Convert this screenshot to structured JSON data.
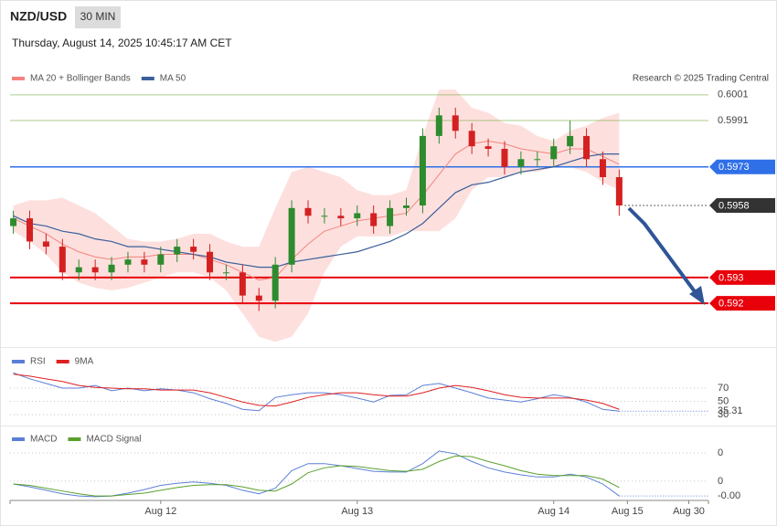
{
  "header": {
    "symbol": "NZD/USD",
    "interval": "30 MIN",
    "date": "Thursday, August 14, 2025 10:45:17 AM CET"
  },
  "chart_data": [
    {
      "type": "candlestick",
      "annotation": "Research © 2025 Trading Central",
      "x": [
        -18,
        -16,
        -14,
        -12,
        -10,
        -8,
        -6,
        -4,
        -2,
        0,
        2,
        4,
        6,
        8,
        10,
        12,
        14,
        16,
        18,
        20,
        22,
        24,
        26,
        28,
        30,
        32,
        34,
        36,
        38,
        40,
        42,
        44,
        46,
        48,
        50,
        52,
        54,
        56
      ],
      "open": [
        0.595,
        0.5953,
        0.5944,
        0.5942,
        0.5932,
        0.5934,
        0.5932,
        0.5935,
        0.5937,
        0.5935,
        0.5939,
        0.5942,
        0.594,
        0.5932,
        0.5932,
        0.5923,
        0.5921,
        0.5935,
        0.5957,
        0.5954,
        0.5954,
        0.5953,
        0.5955,
        0.595,
        0.5957,
        0.5958,
        0.5985,
        0.5993,
        0.5987,
        0.5981,
        0.598,
        0.5973,
        0.5976,
        0.5976,
        0.5981,
        0.5985,
        0.5976,
        0.5969
      ],
      "high": [
        0.5956,
        0.5956,
        0.5947,
        0.5945,
        0.5937,
        0.5937,
        0.5938,
        0.594,
        0.594,
        0.5942,
        0.5945,
        0.5945,
        0.5943,
        0.5935,
        0.5935,
        0.5926,
        0.5938,
        0.596,
        0.596,
        0.5957,
        0.5957,
        0.5958,
        0.5958,
        0.596,
        0.5961,
        0.5988,
        0.5996,
        0.5996,
        0.599,
        0.5984,
        0.5983,
        0.5979,
        0.5979,
        0.5984,
        0.5991,
        0.5988,
        0.5979,
        0.5972
      ],
      "low": [
        0.5947,
        0.5941,
        0.5939,
        0.5929,
        0.5929,
        0.5929,
        0.5929,
        0.5932,
        0.5932,
        0.5932,
        0.5936,
        0.5937,
        0.5929,
        0.5929,
        0.592,
        0.5917,
        0.5918,
        0.5932,
        0.5951,
        0.5951,
        0.595,
        0.595,
        0.5947,
        0.5947,
        0.5954,
        0.5955,
        0.5982,
        0.5984,
        0.5978,
        0.5977,
        0.597,
        0.597,
        0.5973,
        0.5973,
        0.5978,
        0.5973,
        0.5966,
        0.5954
      ],
      "close": [
        0.5953,
        0.5944,
        0.5942,
        0.5932,
        0.5934,
        0.5932,
        0.5935,
        0.5937,
        0.5935,
        0.5939,
        0.5942,
        0.594,
        0.5932,
        0.5932,
        0.5923,
        0.5921,
        0.5935,
        0.5957,
        0.5954,
        0.5954,
        0.5953,
        0.5955,
        0.595,
        0.5957,
        0.5958,
        0.5985,
        0.5993,
        0.5987,
        0.5981,
        0.598,
        0.5973,
        0.5976,
        0.5976,
        0.5981,
        0.5985,
        0.5976,
        0.5969,
        0.5958
      ],
      "up_color": "#2e8b2e",
      "down_color": "#d42020",
      "series": [
        {
          "name": "MA 20 + Bollinger Bands",
          "color": "#f4837d",
          "band_color": "#fde0de",
          "values": [
            0.5953,
            0.595,
            0.5947,
            0.5943,
            0.594,
            0.5938,
            0.5937,
            0.5938,
            0.5938,
            0.5939,
            0.5939,
            0.5939,
            0.5937,
            0.5935,
            0.5932,
            0.5929,
            0.593,
            0.5937,
            0.5943,
            0.5948,
            0.595,
            0.5952,
            0.5953,
            0.5954,
            0.5955,
            0.5962,
            0.597,
            0.5978,
            0.5982,
            0.5983,
            0.5982,
            0.598,
            0.5979,
            0.5978,
            0.598,
            0.598,
            0.5977,
            0.5974
          ],
          "upper": [
            0.5958,
            0.596,
            0.596,
            0.5961,
            0.5958,
            0.5955,
            0.595,
            0.5945,
            0.5944,
            0.5944,
            0.5945,
            0.5947,
            0.5947,
            0.5944,
            0.5942,
            0.5942,
            0.5957,
            0.5971,
            0.5973,
            0.5971,
            0.5969,
            0.5964,
            0.5962,
            0.5962,
            0.5964,
            0.5985,
            0.6003,
            0.6003,
            0.5996,
            0.5994,
            0.599,
            0.5989,
            0.5985,
            0.5983,
            0.5987,
            0.5989,
            0.5992,
            0.5994
          ],
          "lower": [
            0.5948,
            0.5944,
            0.5939,
            0.5932,
            0.5928,
            0.5926,
            0.5925,
            0.5926,
            0.5928,
            0.593,
            0.5932,
            0.5932,
            0.593,
            0.5925,
            0.5916,
            0.5907,
            0.5905,
            0.5907,
            0.5916,
            0.5932,
            0.5942,
            0.5946,
            0.5946,
            0.5946,
            0.5948,
            0.5948,
            0.5948,
            0.5953,
            0.5964,
            0.5969,
            0.5969,
            0.5971,
            0.5971,
            0.5973,
            0.5973,
            0.5971,
            0.5967,
            0.5964
          ]
        },
        {
          "name": "MA 50",
          "color": "#3a5f9a",
          "values": [
            0.5954,
            0.5951,
            0.595,
            0.5948,
            0.5947,
            0.5945,
            0.5944,
            0.5942,
            0.5942,
            0.5941,
            0.594,
            0.5939,
            0.5938,
            0.5936,
            0.5935,
            0.5934,
            0.5934,
            0.5936,
            0.5937,
            0.5938,
            0.5939,
            0.594,
            0.5942,
            0.5944,
            0.5947,
            0.5951,
            0.5957,
            0.5963,
            0.5966,
            0.5967,
            0.5969,
            0.5971,
            0.5972,
            0.5973,
            0.5975,
            0.5977,
            0.5978,
            0.5978
          ]
        }
      ],
      "levels": [
        {
          "value": 0.6001,
          "color": "#5a9e1e",
          "tag": false,
          "width": 1,
          "dashed": false
        },
        {
          "value": 0.5991,
          "color": "#5a9e1e",
          "tag": false,
          "width": 1,
          "dashed": false
        },
        {
          "value": 0.5973,
          "color": "#2f6fe8",
          "tag": true,
          "width": 1.5,
          "dashed": false
        },
        {
          "value": 0.5958,
          "color": "#333333",
          "tag": true,
          "width": 1,
          "dashed": true
        },
        {
          "value": 0.593,
          "color": "#e8000b",
          "tag": true,
          "width": 2,
          "dashed": false
        },
        {
          "value": 0.592,
          "color": "#e8000b",
          "tag": true,
          "width": 2,
          "dashed": false
        }
      ],
      "xlim": [
        -18.4,
        66.9
      ],
      "ylim": [
        0.5903,
        0.6013
      ]
    },
    {
      "type": "line",
      "x": [
        -18,
        -16,
        -14,
        -12,
        -10,
        -8,
        -6,
        -4,
        -2,
        0,
        2,
        4,
        6,
        8,
        10,
        12,
        14,
        16,
        18,
        20,
        22,
        24,
        26,
        28,
        30,
        32,
        34,
        36,
        38,
        40,
        42,
        44,
        46,
        48,
        50,
        52,
        54,
        56
      ],
      "series": [
        {
          "name": "RSI",
          "color": "#5b7fd6",
          "values": [
            93,
            84,
            77,
            70,
            70,
            74,
            66,
            70,
            66,
            69,
            67,
            63,
            54,
            47,
            38,
            36,
            56,
            60,
            63,
            63,
            60,
            55,
            49,
            59,
            60,
            74,
            77,
            70,
            63,
            55,
            52,
            49,
            54,
            60,
            56,
            49,
            38,
            35.31
          ]
        },
        {
          "name": "9MA",
          "color": "#e02020",
          "values": [
            91,
            88,
            84,
            80,
            74,
            71,
            70,
            69,
            69,
            67,
            67,
            67,
            63,
            56,
            49,
            44,
            43,
            49,
            56,
            60,
            63,
            63,
            60,
            58,
            58,
            63,
            70,
            74,
            71,
            66,
            60,
            56,
            55,
            55,
            55,
            52,
            47,
            38
          ]
        }
      ],
      "xlim": [
        -18.4,
        66.9
      ],
      "ylim": [
        15,
        125
      ],
      "yticks": [
        70,
        50,
        30
      ]
    },
    {
      "type": "line",
      "x": [
        -18,
        -16,
        -14,
        -12,
        -10,
        -8,
        -6,
        -4,
        -2,
        0,
        2,
        4,
        6,
        8,
        10,
        12,
        14,
        16,
        18,
        20,
        22,
        24,
        26,
        28,
        30,
        32,
        34,
        36,
        38,
        40,
        42,
        44,
        46,
        48,
        50,
        52,
        54,
        56
      ],
      "series": [
        {
          "name": "MACD",
          "color": "#5b7fd6",
          "values": [
            -4e-05,
            -8e-05,
            -0.00013,
            -0.00018,
            -0.00021,
            -0.00022,
            -0.00021,
            -0.00017,
            -0.00012,
            -6e-05,
            -3e-05,
            -1e-05,
            -3e-05,
            -6e-05,
            -0.00013,
            -0.00018,
            -0.0001,
            0.00015,
            0.00025,
            0.00025,
            0.00022,
            0.00018,
            0.00014,
            0.00013,
            0.00013,
            0.00025,
            0.00043,
            0.00039,
            0.00028,
            0.00019,
            0.00013,
            9e-05,
            6e-05,
            6e-05,
            0.0001,
            6e-05,
            -4e-05,
            -0.00021
          ],
          "value_labels": [
            null,
            null,
            null,
            null,
            null,
            null,
            null,
            null,
            null,
            null,
            null,
            null,
            null,
            null,
            null,
            null,
            null,
            null,
            null,
            null,
            null,
            null,
            null,
            null,
            null,
            null,
            null,
            null,
            null,
            null,
            null,
            null,
            null,
            null,
            null,
            null,
            null,
            "-0.00"
          ]
        },
        {
          "name": "MACD Signal",
          "color": "#5aa02c",
          "values": [
            -4e-05,
            -6e-05,
            -0.0001,
            -0.00014,
            -0.00018,
            -0.00021,
            -0.00021,
            -0.00019,
            -0.00017,
            -0.00013,
            -9e-05,
            -6e-05,
            -5e-05,
            -5e-05,
            -8e-05,
            -0.00013,
            -0.00014,
            -4e-05,
            0.00012,
            0.00019,
            0.00022,
            0.00021,
            0.00018,
            0.00015,
            0.00014,
            0.00017,
            0.00028,
            0.00036,
            0.00035,
            0.00028,
            0.00022,
            0.00015,
            0.0001,
            8e-05,
            8e-05,
            8e-05,
            3e-05,
            -9e-05
          ]
        }
      ],
      "xlim": [
        -18.4,
        66.9
      ],
      "ylim": [
        -0.0003,
        0.00074
      ],
      "yticks": [
        {
          "value": 0.0004,
          "label": "0"
        },
        0
      ],
      "xticks": [
        {
          "value": 0,
          "label": "Aug 12"
        },
        {
          "value": 24,
          "label": "Aug 13"
        },
        {
          "value": 48,
          "label": "Aug 14"
        },
        {
          "value": 57,
          "label": "Aug 15"
        },
        {
          "value": 64.5,
          "label": "Aug 30"
        }
      ]
    }
  ]
}
